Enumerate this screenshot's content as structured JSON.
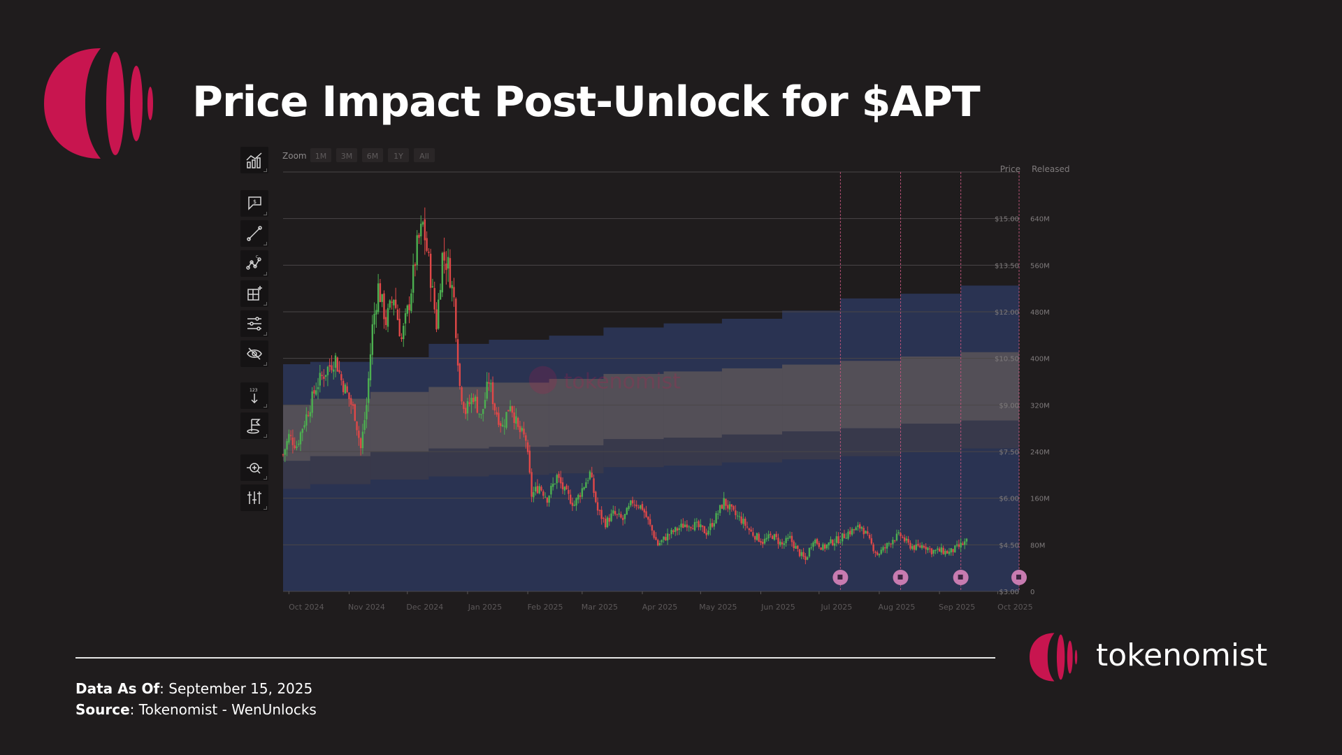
{
  "title": "Price Impact Post-Unlock for $APT",
  "footer": {
    "data_as_of_label": "Data As Of",
    "data_as_of_value": ": September 15, 2025",
    "source_label": "Source",
    "source_value": ": Tokenomist - WenUnlocks"
  },
  "brand": {
    "name": "tokenomist",
    "watermark": "tokenomist",
    "color": "#c8154f"
  },
  "colors": {
    "background": "#1f1c1d",
    "up_candle": "#4caf50",
    "down_candle": "#e04848",
    "unlock_marker": "#c77bb0",
    "released_band": "#2a3352",
    "price_band": "#5a5558"
  },
  "toolbar": {
    "zoom_label": "Zoom",
    "zoom_options": [
      "1M",
      "3M",
      "6M",
      "1Y",
      "All"
    ],
    "tools": [
      "chart-type-icon",
      "price-alert-icon",
      "trend-line-icon",
      "pattern-icon",
      "measure-grid-icon",
      "indicators-icon",
      "hide-icon",
      "sort-123-icon",
      "flag-icon",
      "zoom-scan-icon",
      "adjust-icon"
    ]
  },
  "chart_data": {
    "type": "candlestick",
    "title": "",
    "x_axis": {
      "start": "2024-09-28",
      "end": "2025-10-12",
      "tick_labels": [
        "Oct 2024",
        "Nov 2024",
        "Dec 2024",
        "Jan 2025",
        "Feb 2025",
        "Mar 2025",
        "Apr 2025",
        "May 2025",
        "Jun 2025",
        "Jul 2025",
        "Aug 2025",
        "Sep 2025",
        "Oct 2025"
      ]
    },
    "y_axis_price": {
      "header": "Price",
      "range": [
        3.0,
        16.5
      ],
      "ticks": [
        3.0,
        4.5,
        6.0,
        7.5,
        9.0,
        10.5,
        12.0,
        13.5,
        15.0
      ],
      "tick_labels": [
        "$3.00",
        "$4.50",
        "$6.00",
        "$7.50",
        "$9.00",
        "$10.50",
        "$12.00",
        "$13.50",
        "$15.00"
      ]
    },
    "y_axis_released": {
      "header": "Released",
      "range": [
        0,
        720000000
      ],
      "ticks": [
        0,
        80000000,
        160000000,
        240000000,
        320000000,
        400000000,
        480000000,
        560000000,
        640000000
      ],
      "tick_labels": [
        "0",
        "80M",
        "160M",
        "240M",
        "320M",
        "400M",
        "480M",
        "560M",
        "640M"
      ]
    },
    "released_steps": [
      {
        "date": "2024-09-28",
        "value": 390000000
      },
      {
        "date": "2024-10-12",
        "value": 394000000
      },
      {
        "date": "2024-11-12",
        "value": 402000000
      },
      {
        "date": "2024-12-12",
        "value": 425000000
      },
      {
        "date": "2025-01-12",
        "value": 432000000
      },
      {
        "date": "2025-02-12",
        "value": 439000000
      },
      {
        "date": "2025-03-12",
        "value": 453000000
      },
      {
        "date": "2025-04-12",
        "value": 460000000
      },
      {
        "date": "2025-05-12",
        "value": 468000000
      },
      {
        "date": "2025-06-12",
        "value": 482000000
      },
      {
        "date": "2025-07-12",
        "value": 503000000
      },
      {
        "date": "2025-08-12",
        "value": 511000000
      },
      {
        "date": "2025-09-12",
        "value": 525000000
      },
      {
        "date": "2025-10-12",
        "value": 532000000
      }
    ],
    "price_band": [
      {
        "date": "2024-09-28",
        "low": 7.2,
        "high": 9.0
      },
      {
        "date": "2024-10-12",
        "low": 7.35,
        "high": 9.2
      },
      {
        "date": "2024-11-12",
        "low": 7.5,
        "high": 9.42
      },
      {
        "date": "2024-12-12",
        "low": 7.6,
        "high": 9.58
      },
      {
        "date": "2025-01-12",
        "low": 7.65,
        "high": 9.72
      },
      {
        "date": "2025-02-12",
        "low": 7.7,
        "high": 9.84
      },
      {
        "date": "2025-03-12",
        "low": 7.9,
        "high": 10.0
      },
      {
        "date": "2025-04-12",
        "low": 7.95,
        "high": 10.08
      },
      {
        "date": "2025-05-12",
        "low": 8.05,
        "high": 10.18
      },
      {
        "date": "2025-06-12",
        "low": 8.15,
        "high": 10.3
      },
      {
        "date": "2025-07-12",
        "low": 8.25,
        "high": 10.42
      },
      {
        "date": "2025-08-12",
        "low": 8.4,
        "high": 10.56
      },
      {
        "date": "2025-09-12",
        "low": 8.5,
        "high": 10.7
      },
      {
        "date": "2025-10-12",
        "low": 8.6,
        "high": 10.85
      }
    ],
    "unlock_events": [
      "2025-07-12",
      "2025-08-12",
      "2025-09-12",
      "2025-10-12"
    ],
    "price_path": [
      [
        "2024-09-28",
        7.4
      ],
      [
        "2024-10-01",
        8.0
      ],
      [
        "2024-10-05",
        7.7
      ],
      [
        "2024-10-08",
        8.3
      ],
      [
        "2024-10-12",
        9.0
      ],
      [
        "2024-10-15",
        9.6
      ],
      [
        "2024-10-20",
        10.1
      ],
      [
        "2024-10-25",
        10.5
      ],
      [
        "2024-10-28",
        9.8
      ],
      [
        "2024-11-01",
        9.2
      ],
      [
        "2024-11-04",
        8.7
      ],
      [
        "2024-11-07",
        7.6
      ],
      [
        "2024-11-10",
        9.0
      ],
      [
        "2024-11-13",
        11.5
      ],
      [
        "2024-11-16",
        12.8
      ],
      [
        "2024-11-20",
        11.7
      ],
      [
        "2024-11-24",
        12.5
      ],
      [
        "2024-11-28",
        11.1
      ],
      [
        "2024-12-02",
        12.3
      ],
      [
        "2024-12-06",
        14.1
      ],
      [
        "2024-12-09",
        14.8
      ],
      [
        "2024-12-12",
        13.6
      ],
      [
        "2024-12-16",
        11.6
      ],
      [
        "2024-12-19",
        13.8
      ],
      [
        "2024-12-22",
        13.5
      ],
      [
        "2024-12-25",
        12.4
      ],
      [
        "2024-12-28",
        9.6
      ],
      [
        "2024-12-31",
        8.8
      ],
      [
        "2025-01-04",
        9.3
      ],
      [
        "2025-01-08",
        8.6
      ],
      [
        "2025-01-12",
        9.8
      ],
      [
        "2025-01-15",
        8.9
      ],
      [
        "2025-01-19",
        8.3
      ],
      [
        "2025-01-23",
        9.1
      ],
      [
        "2025-01-27",
        8.2
      ],
      [
        "2025-01-31",
        7.9
      ],
      [
        "2025-02-03",
        6.1
      ],
      [
        "2025-02-07",
        6.4
      ],
      [
        "2025-02-11",
        6.0
      ],
      [
        "2025-02-16",
        6.7
      ],
      [
        "2025-02-20",
        6.2
      ],
      [
        "2025-02-25",
        5.8
      ],
      [
        "2025-03-01",
        6.3
      ],
      [
        "2025-03-05",
        6.8
      ],
      [
        "2025-03-09",
        5.6
      ],
      [
        "2025-03-13",
        5.2
      ],
      [
        "2025-03-17",
        5.5
      ],
      [
        "2025-03-22",
        5.3
      ],
      [
        "2025-03-27",
        5.9
      ],
      [
        "2025-04-01",
        5.7
      ],
      [
        "2025-04-05",
        5.1
      ],
      [
        "2025-04-09",
        4.5
      ],
      [
        "2025-04-14",
        4.8
      ],
      [
        "2025-04-19",
        5.0
      ],
      [
        "2025-04-24",
        5.2
      ],
      [
        "2025-04-29",
        5.1
      ],
      [
        "2025-05-04",
        4.9
      ],
      [
        "2025-05-09",
        5.4
      ],
      [
        "2025-05-13",
        5.9
      ],
      [
        "2025-05-18",
        5.5
      ],
      [
        "2025-05-22",
        5.3
      ],
      [
        "2025-05-27",
        4.9
      ],
      [
        "2025-06-02",
        4.6
      ],
      [
        "2025-06-07",
        4.8
      ],
      [
        "2025-06-12",
        4.5
      ],
      [
        "2025-06-16",
        4.7
      ],
      [
        "2025-06-20",
        4.3
      ],
      [
        "2025-06-24",
        4.0
      ],
      [
        "2025-06-28",
        4.7
      ],
      [
        "2025-07-03",
        4.4
      ],
      [
        "2025-07-08",
        4.6
      ],
      [
        "2025-07-12",
        4.7
      ],
      [
        "2025-07-16",
        4.9
      ],
      [
        "2025-07-20",
        5.0
      ],
      [
        "2025-07-23",
        5.1
      ],
      [
        "2025-07-27",
        4.6
      ],
      [
        "2025-07-31",
        4.2
      ],
      [
        "2025-08-04",
        4.4
      ],
      [
        "2025-08-08",
        4.7
      ],
      [
        "2025-08-12",
        4.8
      ],
      [
        "2025-08-16",
        4.5
      ],
      [
        "2025-08-20",
        4.4
      ],
      [
        "2025-08-24",
        4.5
      ],
      [
        "2025-08-28",
        4.3
      ],
      [
        "2025-09-02",
        4.3
      ],
      [
        "2025-09-06",
        4.25
      ],
      [
        "2025-09-10",
        4.4
      ],
      [
        "2025-09-15",
        4.6
      ]
    ]
  }
}
